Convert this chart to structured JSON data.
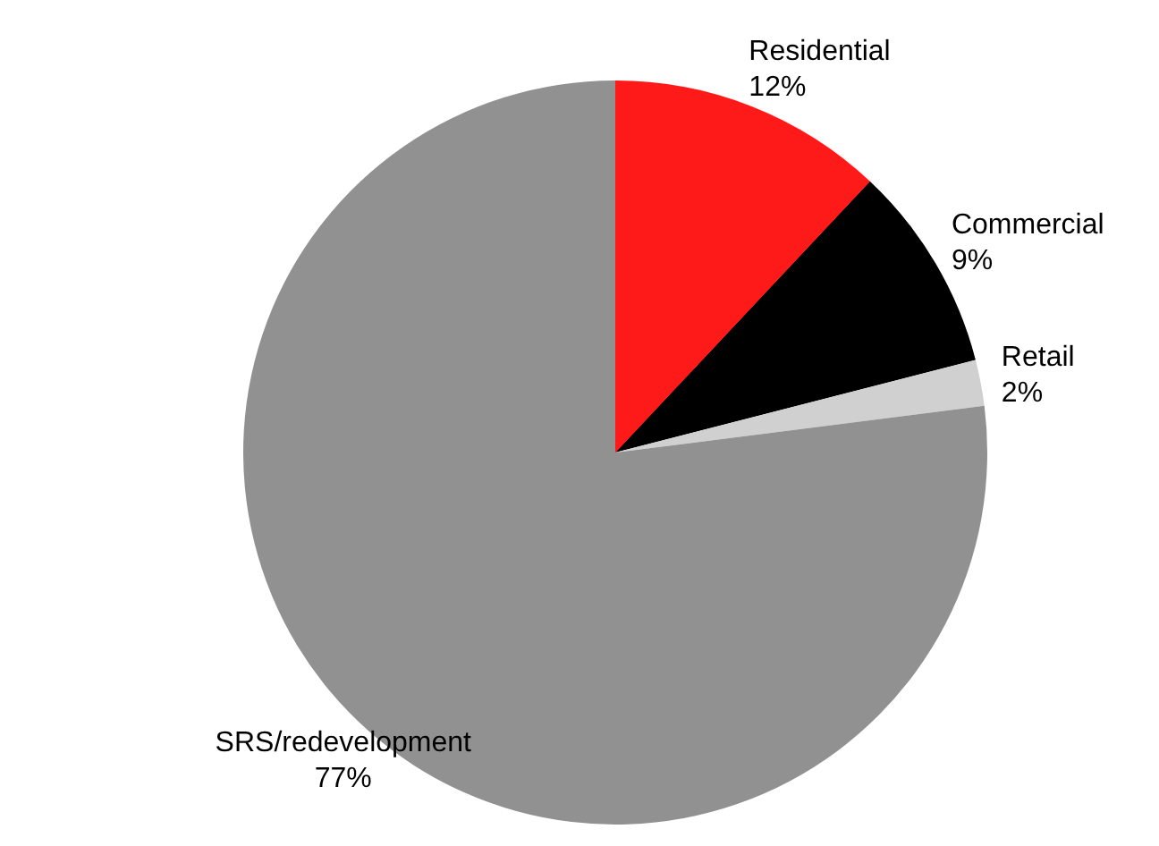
{
  "chart_data": {
    "type": "pie",
    "categories": [
      "Residential",
      "Commercial",
      "Retail",
      "SRS/redevelopment"
    ],
    "values": [
      12,
      9,
      2,
      77
    ],
    "colors": [
      "#ff1a1a",
      "#000000",
      "#d0d0d0",
      "#919191"
    ],
    "value_labels": [
      "12%",
      "9%",
      "2%",
      "77%"
    ]
  }
}
